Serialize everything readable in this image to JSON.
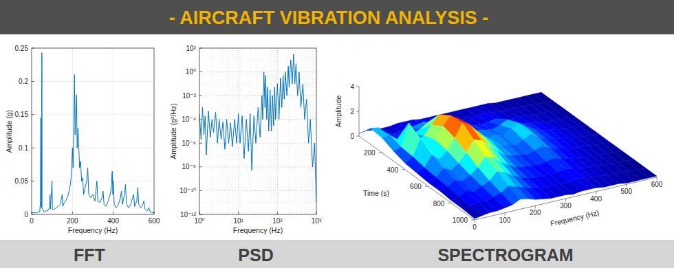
{
  "title": "- AIRCRAFT VIBRATION ANALYSIS -",
  "chart_data": [
    {
      "type": "line",
      "title": "FFT",
      "xlabel": "Frequency (Hz)",
      "ylabel": "Amplitude (g)",
      "color": "#0072bd",
      "grid": true,
      "xlim": [
        0,
        600
      ],
      "xticks": [
        0,
        200,
        400,
        600
      ],
      "ylim": [
        0,
        0.25
      ],
      "yticks": [
        0,
        0.05,
        0.1,
        0.15,
        0.2,
        0.25
      ],
      "x": [
        0,
        10,
        20,
        30,
        40,
        43,
        45,
        47,
        49,
        50,
        51,
        60,
        70,
        80,
        88,
        90,
        92,
        100,
        102,
        110,
        120,
        130,
        140,
        150,
        152,
        160,
        170,
        180,
        190,
        195,
        200,
        203,
        207,
        210,
        213,
        217,
        220,
        223,
        227,
        230,
        235,
        240,
        245,
        250,
        255,
        262,
        270,
        275,
        280,
        290,
        300,
        310,
        320,
        325,
        335,
        345,
        350,
        355,
        365,
        375,
        385,
        390,
        395,
        398,
        400,
        405,
        415,
        425,
        435,
        440,
        445,
        455,
        460,
        465,
        475,
        485,
        495,
        500,
        505,
        515,
        520,
        525,
        535,
        545,
        550,
        555,
        565,
        575,
        580,
        590,
        600
      ],
      "values": [
        0.002,
        0.003,
        0.002,
        0.003,
        0.004,
        0.02,
        0.145,
        0.01,
        0.02,
        0.243,
        0.01,
        0.004,
        0.005,
        0.006,
        0.01,
        0.03,
        0.008,
        0.05,
        0.008,
        0.007,
        0.01,
        0.012,
        0.015,
        0.03,
        0.012,
        0.018,
        0.022,
        0.03,
        0.045,
        0.06,
        0.1,
        0.07,
        0.14,
        0.21,
        0.12,
        0.15,
        0.18,
        0.1,
        0.13,
        0.11,
        0.07,
        0.08,
        0.05,
        0.055,
        0.03,
        0.04,
        0.05,
        0.07,
        0.03,
        0.025,
        0.03,
        0.02,
        0.05,
        0.02,
        0.018,
        0.025,
        0.035,
        0.015,
        0.012,
        0.02,
        0.03,
        0.04,
        0.065,
        0.03,
        0.05,
        0.015,
        0.01,
        0.015,
        0.025,
        0.035,
        0.015,
        0.03,
        0.045,
        0.015,
        0.01,
        0.015,
        0.025,
        0.03,
        0.012,
        0.02,
        0.04,
        0.015,
        0.01,
        0.015,
        0.02,
        0.008,
        0.005,
        0.01,
        0.004,
        0.003,
        0.002
      ]
    },
    {
      "type": "line",
      "title": "PSD",
      "xlabel": "Frequency (Hz)",
      "ylabel": "Amplitude (g²/Hz)",
      "color": "#0072bd",
      "grid": true,
      "log": true,
      "xlim": [
        1,
        1000
      ],
      "xticks": [
        {
          "value": 1,
          "label": "10⁰"
        },
        {
          "value": 10,
          "label": "10¹"
        },
        {
          "value": 100,
          "label": "10²"
        },
        {
          "value": 1000,
          "label": "10³"
        }
      ],
      "ylim": [
        1e-12,
        100
      ],
      "yticks": [
        {
          "value": 1e-12,
          "label": "10⁻¹²"
        },
        {
          "value": 1e-10,
          "label": "10⁻¹⁰"
        },
        {
          "value": 1e-08,
          "label": "10⁻⁸"
        },
        {
          "value": 1e-06,
          "label": "10⁻⁶"
        },
        {
          "value": 0.0001,
          "label": "10⁻⁴"
        },
        {
          "value": 0.01,
          "label": "10⁻²"
        },
        {
          "value": 1,
          "label": "10⁰"
        },
        {
          "value": 100,
          "label": "10²"
        }
      ],
      "x": [
        1,
        1.1,
        1.2,
        1.3,
        1.4,
        1.5,
        1.7,
        1.9,
        2.1,
        2.3,
        2.6,
        2.9,
        3.2,
        3.6,
        4,
        4.5,
        5,
        5.6,
        6.3,
        7,
        8,
        9,
        10,
        11,
        12.5,
        14,
        16,
        18,
        20,
        22,
        25,
        28,
        32,
        36,
        40,
        42,
        45,
        48,
        50,
        53,
        56,
        60,
        65,
        70,
        75,
        80,
        85,
        90,
        100,
        110,
        120,
        130,
        140,
        150,
        160,
        175,
        190,
        200,
        220,
        240,
        260,
        280,
        300,
        330,
        360,
        400,
        450,
        500,
        560,
        630,
        700,
        800,
        900,
        1000
      ],
      "values": [
        0.0003,
        2e-06,
        0.001,
        5e-06,
        0.0002,
        1e-07,
        0.0005,
        3e-06,
        0.0001,
        8e-06,
        0.0004,
        1e-06,
        0.0001,
        2e-06,
        6e-05,
        3e-07,
        0.0001,
        1e-06,
        5e-05,
        5e-07,
        0.0001,
        1e-06,
        0.0003,
        1e-06,
        0.0002,
        5e-08,
        0.0001,
        2e-07,
        0.0003,
        5e-09,
        0.0002,
        1e-06,
        0.001,
        3e-06,
        0.01,
        0.0001,
        1,
        0.001,
        0.5,
        0.0001,
        0.05,
        1e-05,
        0.03,
        1e-05,
        0.01,
        3e-05,
        0.05,
        0.0001,
        0.1,
        0.0001,
        0.3,
        0.001,
        0.5,
        0.005,
        1,
        0.01,
        3,
        0.05,
        10,
        0.1,
        30,
        0.1,
        5,
        0.01,
        1,
        0.001,
        0.1,
        0.0001,
        0.005,
        1e-06,
        0.0001,
        1e-08,
        1e-06,
        1e-11
      ]
    },
    {
      "type": "surface",
      "title": "SPECTROGRAM",
      "xlabel": "Frequency (Hz)",
      "ylabel": "Time (s)",
      "zlabel": "Amplitude",
      "grid": false,
      "xlim": [
        0,
        600
      ],
      "xticks": [
        0,
        100,
        200,
        300,
        400,
        500,
        600
      ],
      "ylim": [
        0,
        1000
      ],
      "yticks": [
        200,
        400,
        600,
        800,
        1000
      ],
      "zlim": [
        0,
        4
      ],
      "zticks": [
        0,
        2,
        4
      ],
      "x": [
        0,
        25,
        50,
        75,
        100,
        125,
        150,
        175,
        200,
        225,
        250,
        275,
        300,
        325,
        350,
        375,
        400,
        425,
        450,
        475,
        500,
        525,
        550,
        575,
        600
      ],
      "y": [
        0,
        100,
        200,
        300,
        400,
        500,
        600,
        700,
        800,
        900,
        1000
      ],
      "z": [
        [
          0.2,
          0.3,
          0.2,
          0.2,
          0.2,
          0.3,
          0.3,
          0.3,
          0.2,
          0.2,
          0.2,
          0.2,
          0.2,
          0.2,
          0.2,
          0.2,
          0.2,
          0.2,
          0.1,
          0.1,
          0.1,
          0.1,
          0.1,
          0.1,
          0.1
        ],
        [
          1.3,
          1.2,
          0.6,
          0.4,
          0.5,
          0.6,
          0.7,
          0.8,
          0.6,
          0.5,
          0.4,
          0.4,
          0.3,
          0.3,
          0.3,
          0.4,
          0.3,
          0.3,
          0.2,
          0.2,
          0.2,
          0.2,
          0.1,
          0.1,
          0.1
        ],
        [
          1.2,
          1.3,
          0.8,
          0.6,
          0.9,
          1.2,
          1.6,
          1.4,
          1.0,
          0.8,
          0.6,
          0.5,
          0.5,
          0.4,
          0.5,
          0.6,
          0.4,
          0.3,
          0.3,
          0.3,
          0.2,
          0.2,
          0.2,
          0.1,
          0.1
        ],
        [
          0.8,
          1.0,
          2.8,
          1.2,
          1.5,
          2.2,
          2.9,
          2.6,
          1.9,
          1.4,
          1.0,
          0.9,
          0.8,
          0.7,
          0.9,
          1.2,
          0.8,
          0.6,
          0.5,
          0.4,
          0.3,
          0.3,
          0.2,
          0.2,
          0.1
        ],
        [
          0.5,
          0.9,
          2.2,
          1.4,
          1.8,
          2.8,
          3.5,
          3.1,
          2.4,
          1.8,
          1.3,
          1.0,
          1.1,
          0.9,
          1.3,
          1.6,
          1.1,
          0.8,
          0.6,
          0.5,
          0.4,
          0.3,
          0.3,
          0.2,
          0.1
        ],
        [
          0.4,
          0.7,
          1.6,
          1.1,
          1.6,
          2.5,
          3.6,
          3.3,
          2.6,
          2.0,
          1.4,
          1.1,
          1.0,
          0.8,
          1.1,
          1.4,
          1.0,
          0.7,
          0.6,
          0.5,
          0.4,
          0.3,
          0.2,
          0.2,
          0.1
        ],
        [
          0.3,
          0.6,
          1.2,
          0.9,
          1.3,
          2.0,
          2.9,
          2.7,
          2.2,
          1.6,
          1.1,
          0.9,
          0.8,
          0.7,
          0.9,
          1.1,
          0.8,
          0.6,
          0.5,
          0.4,
          0.3,
          0.3,
          0.2,
          0.2,
          0.1
        ],
        [
          0.3,
          0.5,
          0.9,
          0.7,
          1.0,
          1.5,
          2.2,
          2.0,
          1.5,
          1.1,
          0.8,
          0.7,
          0.6,
          0.5,
          0.7,
          0.8,
          0.6,
          0.5,
          0.4,
          0.3,
          0.3,
          0.2,
          0.2,
          0.1,
          0.1
        ],
        [
          0.2,
          0.4,
          0.7,
          0.5,
          0.8,
          1.1,
          1.7,
          1.5,
          1.1,
          0.8,
          0.6,
          0.5,
          0.5,
          0.4,
          0.5,
          0.6,
          0.5,
          0.4,
          0.3,
          0.3,
          0.2,
          0.2,
          0.1,
          0.1,
          0.1
        ],
        [
          0.2,
          0.3,
          0.5,
          0.4,
          0.6,
          0.8,
          1.2,
          1.0,
          0.8,
          0.6,
          0.5,
          0.4,
          0.4,
          0.3,
          0.4,
          0.5,
          0.4,
          0.3,
          0.3,
          0.2,
          0.2,
          0.2,
          0.1,
          0.1,
          0.1
        ],
        [
          0.1,
          0.2,
          0.3,
          0.3,
          0.4,
          0.5,
          0.8,
          0.7,
          0.5,
          0.4,
          0.3,
          0.3,
          0.3,
          0.2,
          0.3,
          0.3,
          0.3,
          0.2,
          0.2,
          0.2,
          0.1,
          0.1,
          0.1,
          0.1,
          0.1
        ]
      ]
    }
  ]
}
